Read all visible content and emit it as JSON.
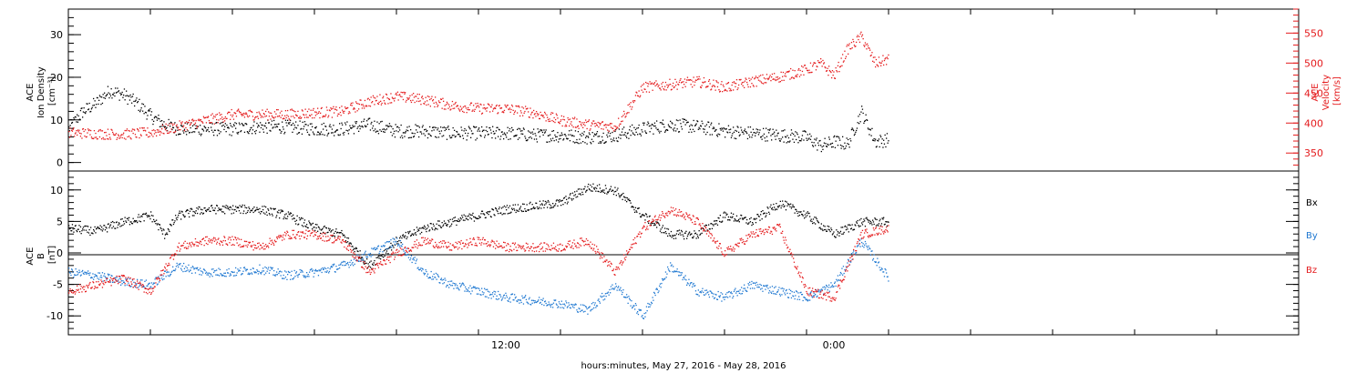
{
  "xlabel": "hours:minutes, May 27, 2016 - May 28, 2016",
  "colors": {
    "black": "#000000",
    "red": "#e41a1c",
    "blue": "#1f78d1"
  },
  "chart_data": [
    {
      "type": "scatter",
      "panel": "top",
      "x_range_hours": [
        0,
        45
      ],
      "x_ticks": [
        {
          "t": 16,
          "label": "12:00"
        },
        {
          "t": 28,
          "label": "0:00"
        }
      ],
      "left_axis": {
        "label_lines": [
          "ACE",
          "Ion Density",
          "[cm⁻³]"
        ],
        "ylim": [
          -2,
          36
        ],
        "ticks": [
          0,
          10,
          20,
          30
        ]
      },
      "right_axis": {
        "label_lines": [
          "ACE",
          "Velocity",
          "[km/s]"
        ],
        "ylim": [
          320,
          590
        ],
        "ticks": [
          350,
          400,
          450,
          500,
          550
        ]
      },
      "series": [
        {
          "axis": "left",
          "color": "#000000",
          "points": [
            [
              0,
              8
            ],
            [
              0.5,
              12
            ],
            [
              1,
              14
            ],
            [
              1.5,
              17
            ],
            [
              2,
              16
            ],
            [
              2.5,
              14
            ],
            [
              3,
              11
            ],
            [
              3.5,
              9
            ],
            [
              4,
              8
            ],
            [
              5,
              8
            ],
            [
              6,
              8
            ],
            [
              7,
              8.5
            ],
            [
              8,
              8.5
            ],
            [
              9,
              8
            ],
            [
              10,
              8
            ],
            [
              11,
              9
            ],
            [
              12,
              7.5
            ],
            [
              13,
              7.5
            ],
            [
              14,
              7
            ],
            [
              15,
              7
            ],
            [
              16,
              7
            ],
            [
              17,
              6.5
            ],
            [
              18,
              6.5
            ],
            [
              19,
              6
            ],
            [
              20,
              6.5
            ],
            [
              21,
              8
            ],
            [
              22,
              9
            ],
            [
              23,
              8.5
            ],
            [
              24,
              7.5
            ],
            [
              25,
              7
            ],
            [
              26,
              6.5
            ],
            [
              27,
              6
            ],
            [
              27.5,
              4
            ],
            [
              28,
              5
            ],
            [
              28.5,
              4.5
            ],
            [
              29,
              12
            ],
            [
              29.5,
              5
            ],
            [
              30,
              5.5
            ]
          ]
        },
        {
          "axis": "right",
          "color": "#e41a1c",
          "points": [
            [
              0,
              385
            ],
            [
              1,
              383
            ],
            [
              2,
              382
            ],
            [
              3,
              385
            ],
            [
              4,
              395
            ],
            [
              5,
              405
            ],
            [
              6,
              415
            ],
            [
              7,
              415
            ],
            [
              8,
              415
            ],
            [
              9,
              418
            ],
            [
              10,
              420
            ],
            [
              11,
              437
            ],
            [
              12,
              445
            ],
            [
              13,
              440
            ],
            [
              14,
              430
            ],
            [
              15,
              425
            ],
            [
              16,
              425
            ],
            [
              17,
              418
            ],
            [
              18,
              405
            ],
            [
              19,
              398
            ],
            [
              20,
              395
            ],
            [
              21,
              460
            ],
            [
              22,
              465
            ],
            [
              23,
              470
            ],
            [
              24,
              460
            ],
            [
              25,
              470
            ],
            [
              26,
              478
            ],
            [
              27,
              490
            ],
            [
              27.5,
              500
            ],
            [
              28,
              480
            ],
            [
              28.5,
              525
            ],
            [
              29,
              545
            ],
            [
              29.5,
              500
            ],
            [
              30,
              508
            ]
          ]
        }
      ]
    },
    {
      "type": "scatter",
      "panel": "bottom",
      "x_range_hours": [
        0,
        45
      ],
      "x_ticks": [
        {
          "t": 16,
          "label": "12:00"
        },
        {
          "t": 28,
          "label": "0:00"
        }
      ],
      "axis": {
        "label_lines": [
          "ACE",
          "B",
          "[nT]"
        ],
        "ylim": [
          -13,
          13
        ],
        "ticks": [
          -10,
          -5,
          0,
          5,
          10
        ]
      },
      "legend": [
        "Bx",
        "By",
        "Bz"
      ],
      "series": [
        {
          "name": "Bx",
          "color": "#000000",
          "points": [
            [
              0,
              4
            ],
            [
              1,
              3.5
            ],
            [
              2,
              5
            ],
            [
              3,
              6
            ],
            [
              3.5,
              3
            ],
            [
              4,
              6
            ],
            [
              5,
              7
            ],
            [
              6,
              7
            ],
            [
              7,
              7
            ],
            [
              8,
              6
            ],
            [
              9,
              4
            ],
            [
              10,
              3
            ],
            [
              11,
              -2
            ],
            [
              12,
              2
            ],
            [
              13,
              4
            ],
            [
              14,
              5
            ],
            [
              15,
              6
            ],
            [
              16,
              7
            ],
            [
              17,
              7.5
            ],
            [
              18,
              8
            ],
            [
              19,
              10.5
            ],
            [
              20,
              10
            ],
            [
              21,
              6
            ],
            [
              22,
              3
            ],
            [
              23,
              3
            ],
            [
              24,
              6
            ],
            [
              25,
              5
            ],
            [
              26,
              8
            ],
            [
              27,
              6
            ],
            [
              28,
              3
            ],
            [
              29,
              5
            ],
            [
              30,
              5
            ]
          ]
        },
        {
          "name": "By",
          "color": "#1f78d1",
          "points": [
            [
              0,
              -3
            ],
            [
              1,
              -3.5
            ],
            [
              2,
              -4.5
            ],
            [
              3,
              -5
            ],
            [
              4,
              -2
            ],
            [
              5,
              -3
            ],
            [
              6,
              -3
            ],
            [
              7,
              -2.5
            ],
            [
              8,
              -3.5
            ],
            [
              9,
              -3
            ],
            [
              10,
              -2
            ],
            [
              11,
              0
            ],
            [
              12,
              2
            ],
            [
              13,
              -3
            ],
            [
              14,
              -5
            ],
            [
              15,
              -6
            ],
            [
              16,
              -7
            ],
            [
              17,
              -7.5
            ],
            [
              18,
              -8
            ],
            [
              19,
              -9
            ],
            [
              20,
              -5
            ],
            [
              21,
              -10
            ],
            [
              22,
              -2
            ],
            [
              23,
              -6
            ],
            [
              24,
              -7
            ],
            [
              25,
              -5
            ],
            [
              26,
              -6
            ],
            [
              27,
              -7
            ],
            [
              28,
              -5
            ],
            [
              29,
              2
            ],
            [
              30,
              -4
            ]
          ]
        },
        {
          "name": "Bz",
          "color": "#e41a1c",
          "points": [
            [
              0,
              -6
            ],
            [
              1,
              -5
            ],
            [
              2,
              -4
            ],
            [
              3,
              -6
            ],
            [
              4,
              1
            ],
            [
              5,
              2
            ],
            [
              6,
              2
            ],
            [
              7,
              1
            ],
            [
              8,
              3
            ],
            [
              9,
              3
            ],
            [
              10,
              2
            ],
            [
              11,
              -3
            ],
            [
              12,
              0
            ],
            [
              13,
              2
            ],
            [
              14,
              1
            ],
            [
              15,
              2
            ],
            [
              16,
              1
            ],
            [
              17,
              1
            ],
            [
              18,
              1
            ],
            [
              19,
              2
            ],
            [
              20,
              -3
            ],
            [
              21,
              4
            ],
            [
              22,
              7
            ],
            [
              23,
              5
            ],
            [
              24,
              0
            ],
            [
              25,
              3
            ],
            [
              26,
              4
            ],
            [
              27,
              -6
            ],
            [
              28,
              -7
            ],
            [
              29,
              3
            ],
            [
              30,
              4
            ]
          ]
        }
      ]
    }
  ]
}
